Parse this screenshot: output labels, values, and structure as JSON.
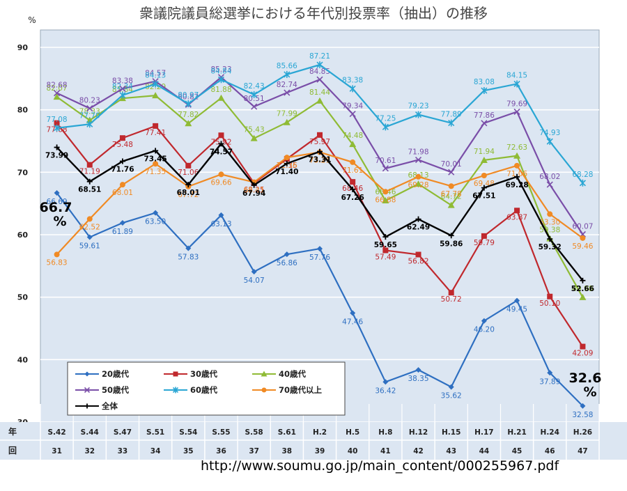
{
  "source_url": "http://www.soumu.go.jp/main_content/000255967.pdf",
  "callouts": {
    "left_value": "66.7",
    "left_unit": "%",
    "right_value": "32.6",
    "right_unit": "%"
  },
  "colors": {
    "plot_background": "#dce6f2",
    "grid": "#ffffff",
    "series": [
      "#2e6fc1",
      "#c0282d",
      "#8fbb35",
      "#7a4ea8",
      "#2aa6d4",
      "#f08a24",
      "#000000"
    ]
  },
  "chart_data": {
    "type": "line",
    "title": "衆議院議員総選挙における年代別投票率（抽出）の推移",
    "ylabel": "%",
    "ylim": [
      30,
      90
    ],
    "yticks": [
      30,
      40,
      50,
      60,
      70,
      80,
      90
    ],
    "grid": true,
    "legend_position": "bottom-left",
    "x_row_label_top": "年",
    "x_row_label_bottom": "回",
    "categories": [
      "S.42",
      "S.44",
      "S.47",
      "S.51",
      "S.54",
      "S.55",
      "S.58",
      "S.61",
      "H.2",
      "H.5",
      "H.8",
      "H.12",
      "H.15",
      "H.17",
      "H.21",
      "H.24",
      "H.26"
    ],
    "sessions": [
      "31",
      "32",
      "33",
      "34",
      "35",
      "36",
      "37",
      "38",
      "39",
      "40",
      "41",
      "42",
      "43",
      "44",
      "45",
      "46",
      "47"
    ],
    "series": [
      {
        "name": "20歳代",
        "marker": "diamond",
        "values": [
          66.69,
          59.61,
          61.89,
          63.5,
          57.83,
          63.13,
          54.07,
          56.86,
          57.76,
          47.46,
          36.42,
          38.35,
          35.62,
          46.2,
          49.45,
          37.89,
          32.58
        ]
      },
      {
        "name": "30歳代",
        "marker": "square",
        "values": [
          77.88,
          71.19,
          75.48,
          77.41,
          71.06,
          75.92,
          68.25,
          72.15,
          75.97,
          68.46,
          57.49,
          56.82,
          50.72,
          59.79,
          63.87,
          50.1,
          42.09
        ]
      },
      {
        "name": "40歳代",
        "marker": "triangle",
        "values": [
          82.07,
          78.33,
          81.84,
          82.29,
          77.82,
          81.88,
          75.43,
          77.99,
          81.44,
          74.48,
          65.46,
          68.13,
          64.72,
          71.94,
          72.63,
          59.38,
          49.98
        ]
      },
      {
        "name": "50歳代",
        "marker": "x",
        "values": [
          82.68,
          80.23,
          83.38,
          84.57,
          80.82,
          85.23,
          80.51,
          82.74,
          84.85,
          79.34,
          70.61,
          71.98,
          70.01,
          77.86,
          79.69,
          68.02,
          60.07
        ]
      },
      {
        "name": "60歳代",
        "marker": "star",
        "values": [
          77.08,
          77.7,
          82.34,
          84.13,
          80.97,
          84.84,
          82.43,
          85.66,
          87.21,
          83.38,
          77.25,
          79.23,
          77.89,
          83.08,
          84.15,
          74.93,
          68.28
        ]
      },
      {
        "name": "70歳代以上",
        "marker": "circle",
        "values": [
          56.83,
          62.52,
          68.01,
          71.35,
          67.72,
          69.66,
          68.41,
          72.36,
          73.21,
          71.61,
          66.88,
          69.28,
          67.78,
          69.48,
          71.06,
          63.3,
          59.46
        ]
      },
      {
        "name": "全体",
        "marker": "plus",
        "values": [
          73.99,
          68.51,
          71.76,
          73.45,
          68.01,
          74.57,
          67.94,
          71.4,
          73.31,
          67.26,
          59.65,
          62.49,
          59.86,
          67.51,
          69.28,
          59.32,
          52.66
        ]
      }
    ]
  }
}
